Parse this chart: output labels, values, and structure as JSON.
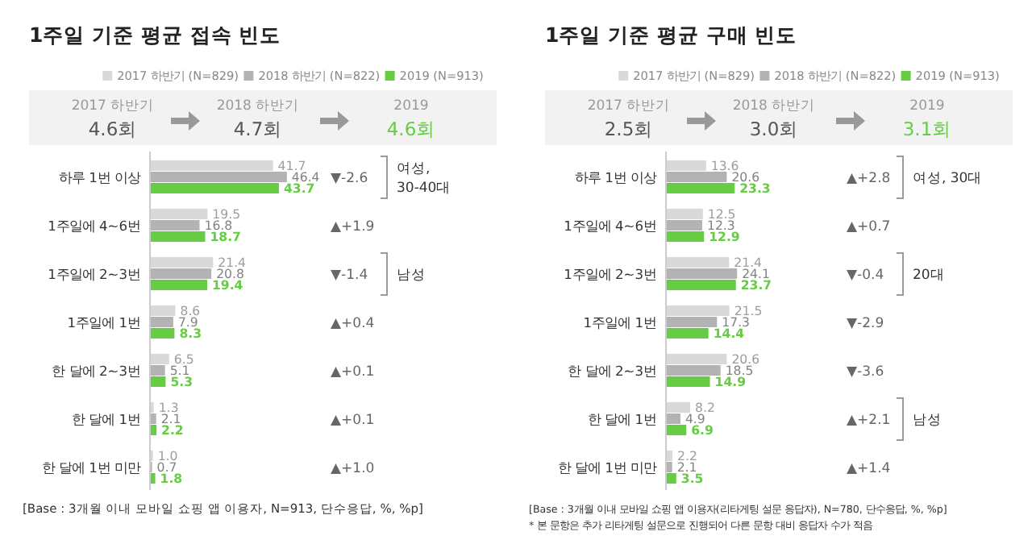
{
  "chart_data": [
    {
      "type": "bar",
      "orientation": "horizontal",
      "title": "1주일 기준 평균 접속 빈도",
      "categories": [
        "하루 1번 이상",
        "1주일에 4~6번",
        "1주일에 2~3번",
        "1주일에 1번",
        "한 달에 2~3번",
        "한 달에 1번",
        "한 달에 1번 미만"
      ],
      "series": [
        {
          "name": "2017 하반기 (N=829)",
          "color": "#d9d9d9",
          "values": [
            41.7,
            19.5,
            21.4,
            8.6,
            6.5,
            1.3,
            1.0
          ],
          "value_labels": [
            "41.7",
            "19.5",
            "21.4",
            "8.6",
            "6.5",
            "1.3",
            "1.0"
          ]
        },
        {
          "name": "2018 하반기 (N=822)",
          "color": "#b3b3b3",
          "values": [
            46.4,
            16.8,
            20.8,
            7.9,
            5.1,
            2.1,
            0.7
          ]
        },
        {
          "name": "2019 (N=913)",
          "color": "#66cc44",
          "values": [
            43.7,
            18.7,
            19.4,
            8.3,
            5.3,
            2.2,
            1.8
          ]
        }
      ],
      "data_labels": true,
      "legend": "top right",
      "annotations": [
        "2017 하반기",
        "4.6회",
        "2018 하반기",
        "4.7회",
        "2019",
        "4.6회",
        "▼-2.6",
        "▲+1.9",
        "▼-1.4",
        "▲+0.4",
        "▲+0.1",
        "▲+0.1",
        "▲+1.0",
        "여성,\n30-40대",
        "남성",
        "[Base : 3개월 이내 모바일 쇼핑 앱 이용자, N=913, 단수응답, %, %p]"
      ]
    },
    {
      "type": "bar",
      "orientation": "horizontal",
      "title": "1주일 기준 평균 구매 빈도",
      "categories": [
        "하루 1번 이상",
        "1주일에 4~6번",
        "1주일에 2~3번",
        "1주일에 1번",
        "한 달에 2~3번",
        "한 달에 1번",
        "한 달에 1번 미만"
      ],
      "series": [
        {
          "name": "2017 하반기 (N=829)",
          "color": "#d9d9d9",
          "values": [
            13.6,
            12.5,
            21.4,
            21.5,
            20.6,
            8.2,
            2.2
          ]
        },
        {
          "name": "2018 하반기 (N=822)",
          "color": "#b3b3b3",
          "values": [
            20.6,
            12.3,
            24.1,
            17.3,
            18.5,
            4.9,
            2.1
          ]
        },
        {
          "name": "2019 (N=913)",
          "color": "#66cc44",
          "values": [
            23.3,
            12.9,
            23.7,
            14.4,
            14.9,
            6.9,
            3.5
          ]
        }
      ],
      "data_labels": true,
      "legend": "top right",
      "annotations": [
        "2017 하반기",
        "2.5회",
        "2018 하반기",
        "3.0회",
        "2019",
        "3.1회",
        "▲+2.8",
        "▲+0.7",
        "▼-0.4",
        "▼-2.9",
        "▼-3.6",
        "▲+2.1",
        "▲+1.4",
        "여성, 30대",
        "20대",
        "남성",
        "[Base : 3개월 이내 모바일 쇼핑 앱 이용자(리타게팅 설문 응답자), N=780, 단수응답, %, %p]",
        "* 본 문항은 추가 리타게팅 설문으로 진행되어 다른 문항 대비 응답자 수가 적음"
      ]
    }
  ]
}
